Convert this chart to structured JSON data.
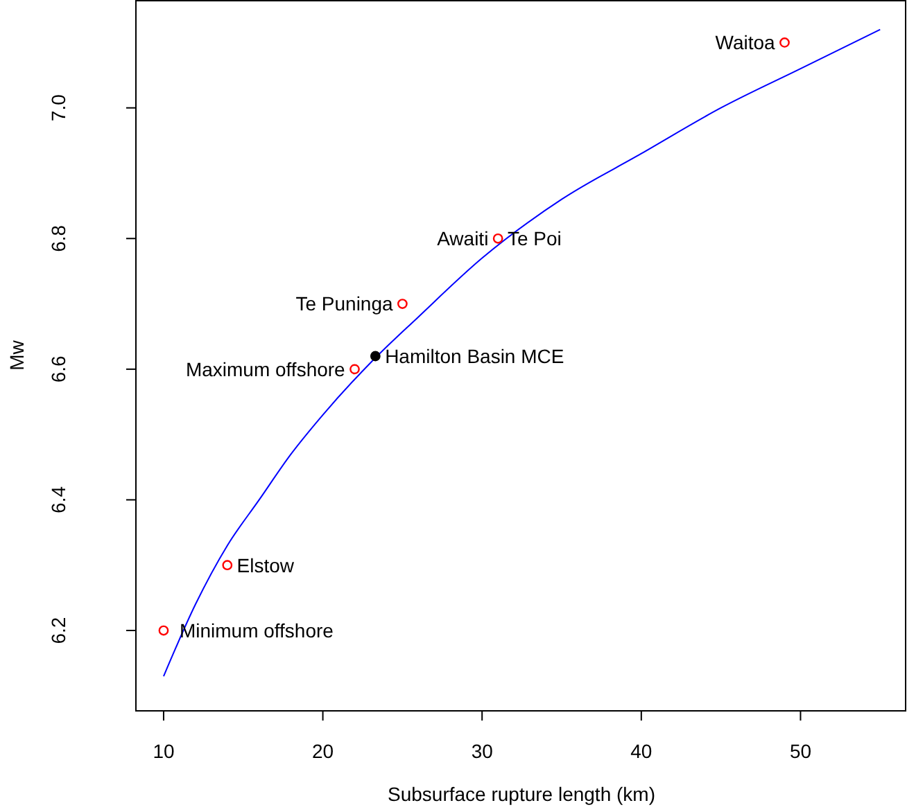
{
  "chart_data": {
    "type": "scatter",
    "xlabel": "Subsurface rupture length (km)",
    "ylabel": "Mw",
    "xlim": [
      8.26,
      56.6
    ],
    "ylim": [
      6.077,
      7.163
    ],
    "xticks": [
      10,
      20,
      30,
      40,
      50
    ],
    "yticks": [
      {
        "value": 6.2,
        "label": "6.2"
      },
      {
        "value": 6.4,
        "label": "6.4"
      },
      {
        "value": 6.6,
        "label": "6.6"
      },
      {
        "value": 6.8,
        "label": "6.8"
      },
      {
        "value": 7.0,
        "label": "7.0"
      }
    ],
    "grid": false,
    "series": [
      {
        "type": "line",
        "marker": "none",
        "color": "#0000ff",
        "x": [
          10,
          12,
          14,
          16,
          18,
          20,
          23,
          26,
          30,
          35,
          40,
          45,
          50,
          55
        ],
        "values": [
          6.13,
          6.24,
          6.33,
          6.4,
          6.47,
          6.53,
          6.61,
          6.68,
          6.77,
          6.86,
          6.93,
          7.0,
          7.06,
          7.12
        ]
      },
      {
        "marker": "circle",
        "color": "#ff0000",
        "x": [
          49,
          31,
          25,
          22,
          14,
          10
        ],
        "values": [
          7.1,
          6.8,
          6.7,
          6.6,
          6.3,
          6.2
        ]
      },
      {
        "marker": "circle",
        "color": "#000000",
        "x": [
          23.3
        ],
        "values": [
          6.62
        ]
      }
    ],
    "annotations": [
      {
        "text": "Waitoa",
        "x": 48.4,
        "y": 7.1
      },
      {
        "text": "Awaiti",
        "x": 30.4,
        "y": 6.8
      },
      {
        "text": "Te Poi",
        "x": 31.6,
        "y": 6.8
      },
      {
        "text": "Te Puninga",
        "x": 24.4,
        "y": 6.7
      },
      {
        "text": "Maximum offshore",
        "x": 21.4,
        "y": 6.6
      },
      {
        "text": "Hamilton Basin MCE",
        "x": 23.9,
        "y": 6.62
      },
      {
        "text": "Elstow",
        "x": 14.6,
        "y": 6.3
      },
      {
        "text": "Minimum offshore",
        "x": 11.0,
        "y": 6.2
      }
    ]
  }
}
